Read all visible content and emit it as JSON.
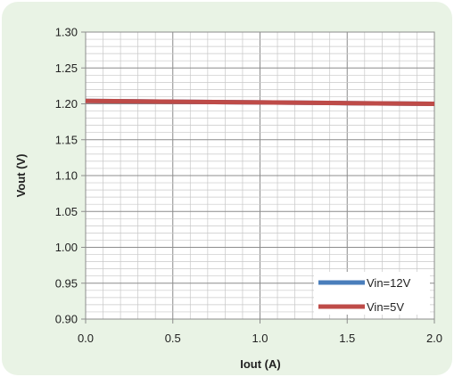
{
  "chart_data": {
    "type": "line",
    "title": "",
    "xlabel": "Iout (A)",
    "ylabel": "Vout (V)",
    "xlim": [
      0.0,
      2.0
    ],
    "ylim": [
      0.9,
      1.3
    ],
    "x_ticks": [
      "0.0",
      "0.5",
      "1.0",
      "1.5",
      "2.0"
    ],
    "y_ticks": [
      "0.90",
      "0.95",
      "1.00",
      "1.05",
      "1.10",
      "1.15",
      "1.20",
      "1.25",
      "1.30"
    ],
    "grid": true,
    "legend_position": "bottom-right",
    "series": [
      {
        "name": "Vin=12V",
        "color": "#4a7ebb",
        "x": [
          0.0,
          0.5,
          1.0,
          1.5,
          2.0
        ],
        "y": [
          1.204,
          1.203,
          1.202,
          1.201,
          1.2
        ]
      },
      {
        "name": "Vin=5V",
        "color": "#be4b48",
        "x": [
          0.0,
          0.5,
          1.0,
          1.5,
          2.0
        ],
        "y": [
          1.204,
          1.203,
          1.202,
          1.201,
          1.2
        ]
      }
    ]
  }
}
